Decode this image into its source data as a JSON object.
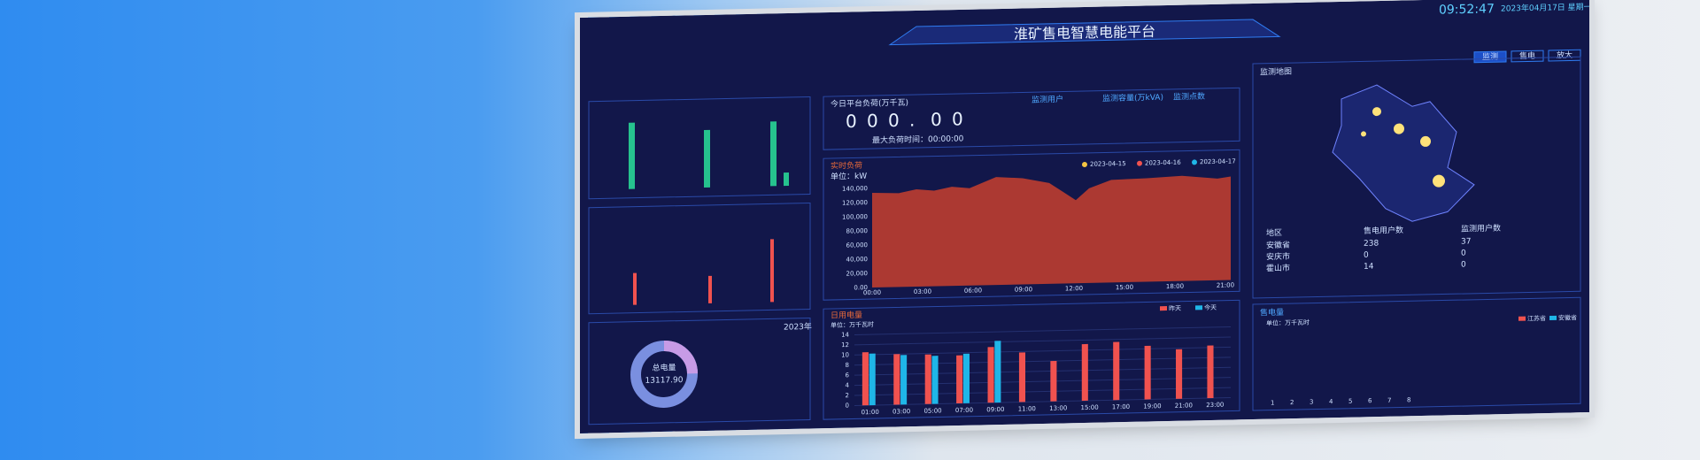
{
  "header": {
    "title": "淮矿售电智慧电能平台",
    "time": "09:52:47",
    "date": "2023年04月17日 星期一",
    "tabs": [
      "监测",
      "售电",
      "放大"
    ]
  },
  "realtime": {
    "title": "今日平台负荷(万千瓦)",
    "digits": [
      "0",
      "0",
      "0",
      ".",
      "0",
      "0"
    ],
    "note": "最大负荷时间：00:00:00",
    "labels": [
      "监测用户",
      "监测容量(万kVA)",
      "监测点数"
    ]
  },
  "load_chart": {
    "title": "实时负荷",
    "unit": "单位：kW",
    "legend": [
      "2023-04-15",
      "2023-04-16",
      "2023-04-17"
    ],
    "yticks": [
      "140,000",
      "120,000",
      "100,000",
      "80,000",
      "60,000",
      "40,000",
      "20,000",
      "0.00"
    ],
    "xticks": [
      "00:00",
      "03:00",
      "06:00",
      "09:00",
      "12:00",
      "15:00",
      "18:00",
      "21:00"
    ]
  },
  "daily_chart": {
    "type": "bar",
    "title": "日用电量",
    "unit": "单位：万千瓦时",
    "categories": [
      "01:00",
      "03:00",
      "05:00",
      "07:00",
      "09:00",
      "11:00",
      "13:00",
      "15:00",
      "17:00",
      "19:00",
      "21:00",
      "23:00"
    ],
    "series": [
      {
        "name": "昨天",
        "color": "#f0524f",
        "values": [
          10.5,
          10,
          9.8,
          9.5,
          11,
          9.8,
          8,
          11.2,
          11.5,
          10.6,
          9.8,
          10.4
        ]
      },
      {
        "name": "今天",
        "color": "#1fb6e8",
        "values": [
          10.2,
          9.8,
          9.5,
          9.8,
          12.2,
          null,
          null,
          null,
          null,
          null,
          null,
          null
        ]
      }
    ],
    "ylim": [
      0,
      14
    ],
    "yticks": [
      0,
      2,
      4,
      6,
      8,
      10,
      12,
      14
    ]
  },
  "donut": {
    "year": "2023年",
    "label": "总电量",
    "value": "13117.90"
  },
  "map": {
    "title": "监测地图",
    "table": {
      "header": [
        "地区",
        "售电用户数",
        "监测用户数"
      ],
      "rows": [
        [
          "安徽省",
          "238",
          "37"
        ],
        [
          "安庆市",
          "0",
          "0"
        ],
        [
          "霍山市",
          "14",
          "0"
        ]
      ]
    }
  },
  "sales": {
    "title": "售电量",
    "unit": "单位：万千瓦时",
    "legend": [
      "江苏省",
      "安徽省"
    ],
    "xlabels": [
      "1",
      "2",
      "3",
      "4",
      "5",
      "6",
      "7",
      "8"
    ]
  }
}
